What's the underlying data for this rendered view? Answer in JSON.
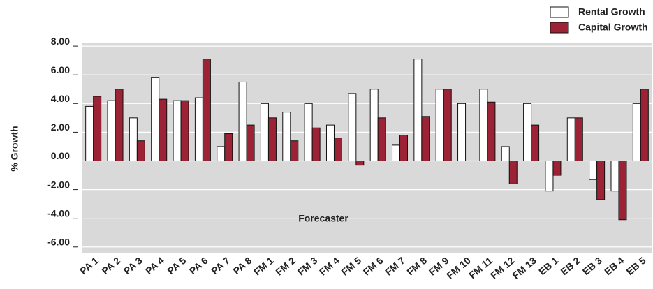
{
  "chart_data": {
    "type": "bar",
    "y_label": "% Growth",
    "annotation": "Forecaster",
    "categories": [
      "PA 1",
      "PA 2",
      "PA 3",
      "PA 4",
      "PA 5",
      "PA 6",
      "PA 7",
      "PA 8",
      "FM 1",
      "FM 2",
      "FM 3",
      "FM 4",
      "FM 5",
      "FM 6",
      "FM 7",
      "FM 8",
      "FM 9",
      "FM 10",
      "FM 11",
      "FM 12",
      "FM 13",
      "EB 1",
      "EB 2",
      "EB 3",
      "EB 4",
      "EB 5"
    ],
    "series": [
      {
        "name": "Rental Growth",
        "color": "#ffffff",
        "values": [
          3.8,
          4.2,
          3.0,
          5.8,
          4.2,
          4.4,
          1.0,
          5.5,
          4.0,
          3.4,
          4.0,
          2.5,
          4.7,
          5.0,
          1.1,
          7.1,
          5.0,
          4.0,
          5.0,
          1.0,
          4.0,
          -2.1,
          3.0,
          -1.3,
          -2.1,
          4.0
        ]
      },
      {
        "name": "Capital Growth",
        "color": "#9b2335",
        "values": [
          4.5,
          5.0,
          1.4,
          4.3,
          4.2,
          7.1,
          1.9,
          2.5,
          3.0,
          1.4,
          2.3,
          1.6,
          -0.3,
          3.0,
          1.8,
          3.1,
          5.0,
          0,
          4.1,
          -1.6,
          2.5,
          -1.0,
          3.0,
          -2.7,
          -4.1,
          5.0
        ]
      }
    ],
    "ylim": [
      -6.4,
      8.2
    ],
    "yticks": [
      {
        "value": 8,
        "label": "8.00"
      },
      {
        "value": 6,
        "label": "6.00"
      },
      {
        "value": 4,
        "label": "4.00"
      },
      {
        "value": 2,
        "label": "2.00"
      },
      {
        "value": 0,
        "label": "0.00"
      },
      {
        "value": -2,
        "label": "-2.00"
      },
      {
        "value": -4,
        "label": "-4.00"
      },
      {
        "value": -6,
        "label": "-6.00"
      }
    ],
    "grid": true,
    "background": "#d9d9d9",
    "legend": "top-right"
  }
}
